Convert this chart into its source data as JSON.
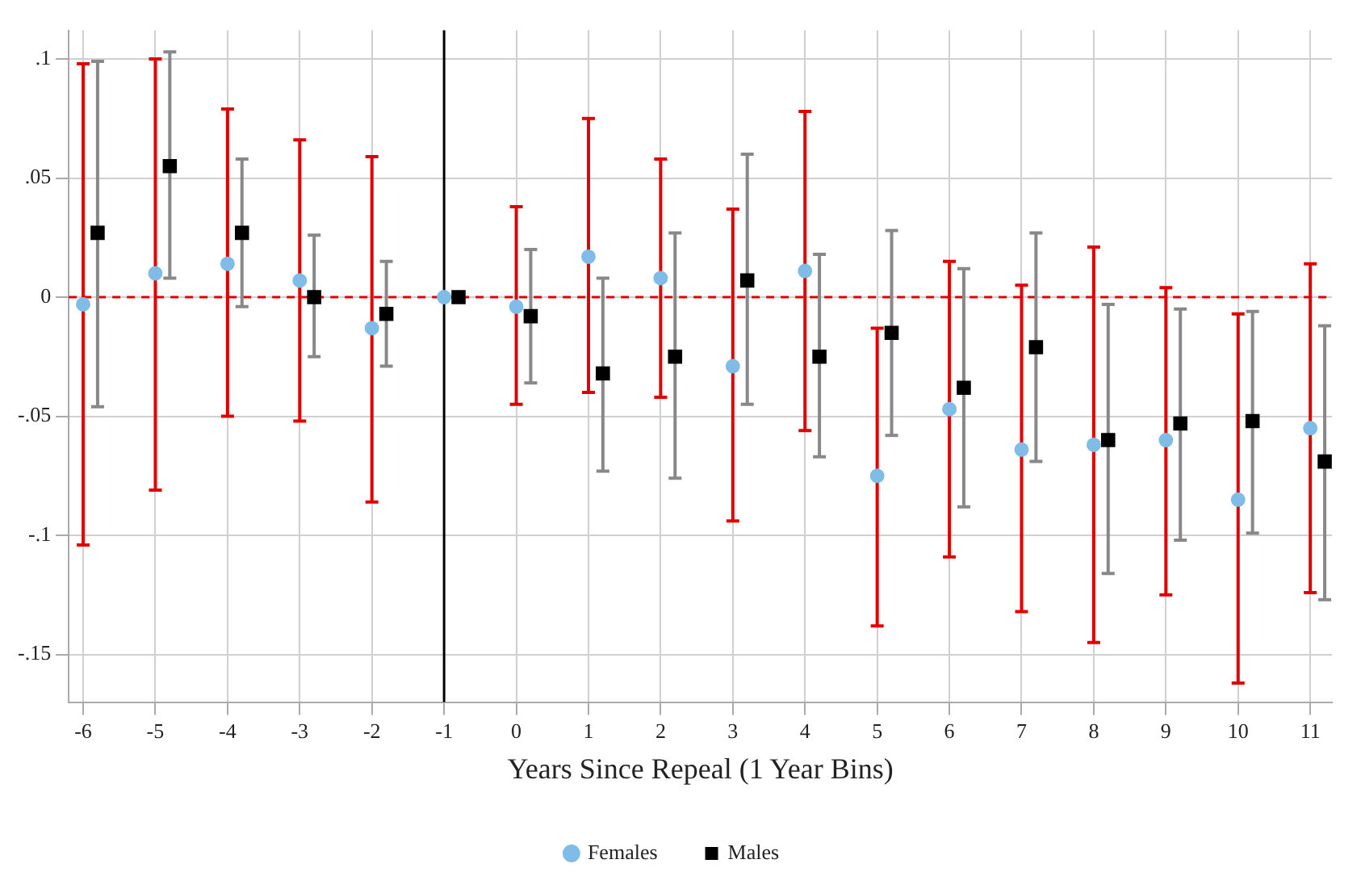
{
  "chart_data": {
    "type": "scatter",
    "xlabel": "Years Since Repeal (1 Year Bins)",
    "xlim": [
      -6.2,
      11.3
    ],
    "xticks": [
      -6,
      -5,
      -4,
      -3,
      -2,
      -1,
      0,
      1,
      2,
      3,
      4,
      5,
      6,
      7,
      8,
      9,
      10,
      11
    ],
    "ylim": [
      -0.17,
      0.112
    ],
    "yticks": [
      {
        "value": 0.1,
        "label": ".1"
      },
      {
        "value": 0.05,
        "label": ".05"
      },
      {
        "value": 0,
        "label": "0"
      },
      {
        "value": -0.05,
        "label": "-.05"
      },
      {
        "value": -0.1,
        "label": "-.1"
      },
      {
        "value": -0.15,
        "label": "-.15"
      }
    ],
    "grid": true,
    "legend": "bottom",
    "ref_lines": [
      {
        "axis": "y",
        "value": 0,
        "color": "#e00000",
        "line_style": "dashed"
      },
      {
        "axis": "x",
        "value": -1,
        "color": "#000000",
        "line_style": "solid"
      }
    ],
    "series": [
      {
        "name": "Females",
        "color": "#7fbde8",
        "marker": "circle",
        "x": [
          -6,
          -5,
          -4,
          -3,
          -2,
          -1,
          0,
          1,
          2,
          3,
          4,
          5,
          6,
          7,
          8,
          9,
          10,
          11
        ],
        "values": [
          -0.003,
          0.01,
          0.014,
          0.007,
          -0.013,
          0,
          -0.004,
          0.017,
          0.008,
          -0.029,
          0.011,
          -0.075,
          -0.047,
          -0.064,
          -0.062,
          -0.06,
          -0.085,
          -0.055
        ],
        "errors": [
          [
            -0.104,
            0.098
          ],
          [
            -0.081,
            0.1
          ],
          [
            -0.05,
            0.079
          ],
          [
            -0.052,
            0.066
          ],
          [
            -0.086,
            0.059
          ],
          null,
          [
            -0.045,
            0.038
          ],
          [
            -0.04,
            0.075
          ],
          [
            -0.042,
            0.058
          ],
          [
            -0.094,
            0.037
          ],
          [
            -0.056,
            0.078
          ],
          [
            -0.138,
            -0.013
          ],
          [
            -0.109,
            0.015
          ],
          [
            -0.132,
            0.005
          ],
          [
            -0.145,
            0.021
          ],
          [
            -0.125,
            0.004
          ],
          [
            -0.162,
            -0.007
          ],
          [
            -0.124,
            0.014
          ]
        ]
      },
      {
        "name": "Males",
        "color": "#000000",
        "marker": "square",
        "x": [
          -5.8,
          -4.8,
          -3.8,
          -2.8,
          -1.8,
          -0.8,
          0.2,
          1.2,
          2.2,
          3.2,
          4.2,
          5.2,
          6.2,
          7.2,
          8.2,
          9.2,
          10.2,
          11.2
        ],
        "values": [
          0.027,
          0.055,
          0.027,
          0,
          -0.007,
          0,
          -0.008,
          -0.032,
          -0.025,
          0.007,
          -0.025,
          -0.015,
          -0.038,
          -0.021,
          -0.06,
          -0.053,
          -0.052,
          -0.069
        ],
        "errors": [
          [
            -0.046,
            0.099
          ],
          [
            0.008,
            0.103
          ],
          [
            -0.004,
            0.058
          ],
          [
            -0.025,
            0.026
          ],
          [
            -0.029,
            0.015
          ],
          null,
          [
            -0.036,
            0.02
          ],
          [
            -0.073,
            0.008
          ],
          [
            -0.076,
            0.027
          ],
          [
            -0.045,
            0.06
          ],
          [
            -0.067,
            0.018
          ],
          [
            -0.058,
            0.028
          ],
          [
            -0.088,
            0.012
          ],
          [
            -0.069,
            0.027
          ],
          [
            -0.116,
            -0.003
          ],
          [
            -0.102,
            -0.005
          ],
          [
            -0.099,
            -0.006
          ],
          [
            -0.127,
            -0.012
          ]
        ]
      }
    ]
  }
}
